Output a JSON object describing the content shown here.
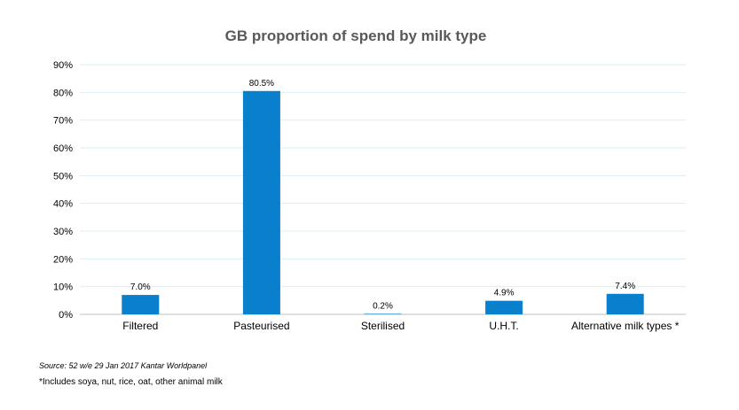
{
  "chart_data": {
    "type": "bar",
    "title": "GB proportion of spend by milk type",
    "categories": [
      "Filtered",
      "Pasteurised",
      "Sterilised",
      "U.H.T.",
      "Alternative milk types *"
    ],
    "values": [
      7.0,
      80.5,
      0.2,
      4.9,
      7.4
    ],
    "data_labels": [
      "7.0%",
      "80.5%",
      "0.2%",
      "4.9%",
      "7.4%"
    ],
    "y_ticks": [
      "0%",
      "10%",
      "20%",
      "30%",
      "40%",
      "50%",
      "60%",
      "70%",
      "80%",
      "90%"
    ],
    "ylim": [
      0,
      90
    ],
    "xlabel": "",
    "ylabel": "",
    "bar_color": "#0a7fcc",
    "grid_color": "#d9eef7",
    "grid": true,
    "legend": "none"
  },
  "footer": {
    "source": "Source: 52 w/e 29 Jan 2017 Kantar Worldpanel",
    "footnote": "*Includes soya, nut, rice, oat, other animal milk"
  }
}
